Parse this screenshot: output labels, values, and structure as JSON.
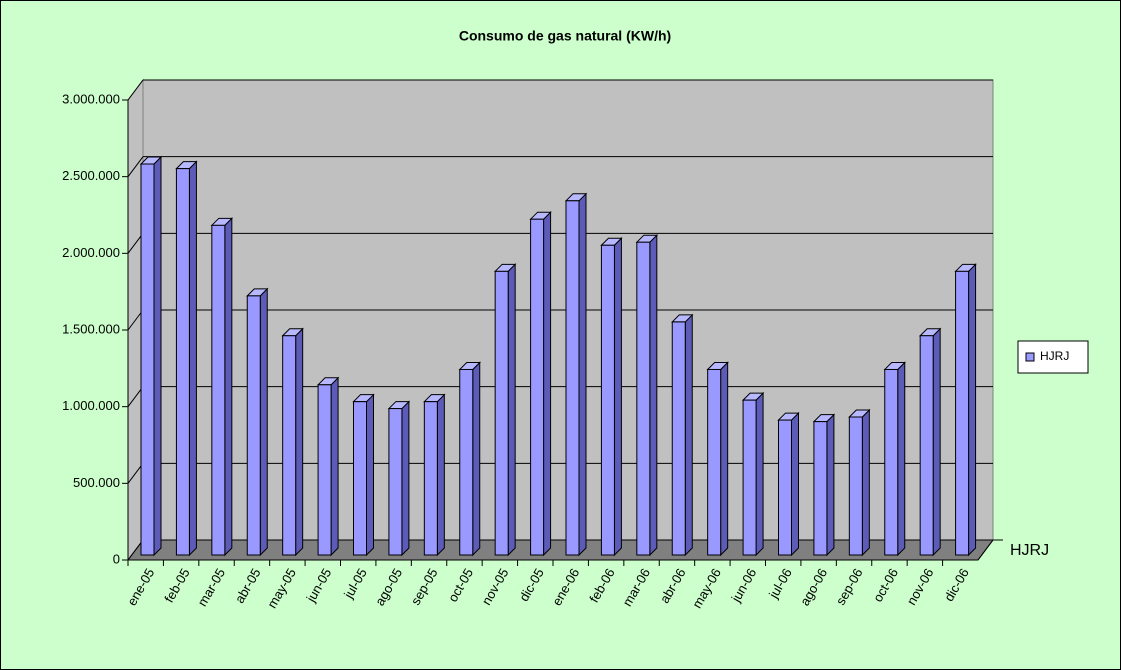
{
  "chart_data": {
    "type": "bar3d",
    "title": "Consumo de gas natural (KW/h)",
    "categories": [
      "ene-05",
      "feb-05",
      "mar-05",
      "abr-05",
      "may-05",
      "jun-05",
      "jul-05",
      "ago-05",
      "sep-05",
      "oct-05",
      "nov-05",
      "dic-05",
      "ene-06",
      "feb-06",
      "mar-06",
      "abr-06",
      "may-06",
      "jun-06",
      "jul-06",
      "ago-06",
      "sep-06",
      "oct-06",
      "nov-06",
      "dic-06"
    ],
    "series": [
      {
        "name": "HJRJ",
        "color": "#9999ff",
        "values": [
          2550000,
          2520000,
          2150000,
          1690000,
          1430000,
          1110000,
          1000000,
          955000,
          1000000,
          1210000,
          1850000,
          2190000,
          2310000,
          2020000,
          2040000,
          1520000,
          1210000,
          1010000,
          880000,
          870000,
          900000,
          1210000,
          1430000,
          1850000
        ]
      }
    ],
    "ylim": [
      0,
      3000000
    ],
    "yticks": [
      0,
      {
        "value": 500000,
        "label": "500.000"
      },
      {
        "value": 1000000,
        "label": "1.000.000"
      },
      {
        "value": 1500000,
        "label": "1.500.000"
      },
      {
        "value": 2000000,
        "label": "2.000.000"
      },
      {
        "value": 2500000,
        "label": "2.500.000"
      },
      {
        "value": 3000000,
        "label": "3.000.000"
      }
    ],
    "grid": true,
    "legend": "right"
  }
}
